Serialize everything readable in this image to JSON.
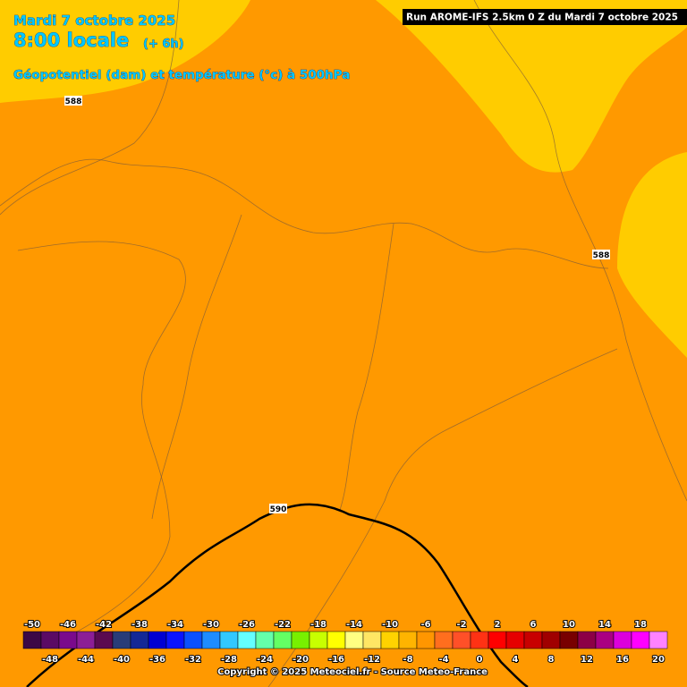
{
  "header": {
    "date": "Mardi 7 octobre 2025",
    "time": "8:00 locale",
    "lead": "(+ 6h)",
    "field": "Géopotentiel (dam) et température (°c) à 500hPa",
    "run": "Run AROME-IFS 2.5km 0 Z du Mardi 7 octobre 2025"
  },
  "contour_labels": [
    "588",
    "588",
    "590"
  ],
  "legend": {
    "values": [
      -50,
      -48,
      -46,
      -44,
      -42,
      -40,
      -38,
      -36,
      -34,
      -32,
      -30,
      -28,
      -26,
      -24,
      -22,
      -20,
      -18,
      -16,
      -14,
      -12,
      -10,
      -8,
      -6,
      -4,
      -2,
      0,
      2,
      4,
      6,
      8,
      10,
      12,
      14,
      16,
      18,
      20
    ],
    "colors": [
      "#3c0846",
      "#5a0a64",
      "#7a0a8c",
      "#8c1e96",
      "#5a0a50",
      "#283c78",
      "#142896",
      "#0000d2",
      "#0a14ff",
      "#0a50ff",
      "#1e8cff",
      "#32c8ff",
      "#64ffff",
      "#64ffaa",
      "#64ff64",
      "#78f000",
      "#c8ff00",
      "#ffff00",
      "#ffff82",
      "#ffe664",
      "#ffd200",
      "#ffb400",
      "#ff9600",
      "#ff6e1e",
      "#ff5028",
      "#ff3214",
      "#ff0000",
      "#e60000",
      "#c80000",
      "#a00000",
      "#780000",
      "#8c0046",
      "#aa0082",
      "#dc00dc",
      "#ff00ff",
      "#ff82ff"
    ]
  },
  "copyright": "Copyright © 2025 Meteociel.fr - Source Meteo-France"
}
